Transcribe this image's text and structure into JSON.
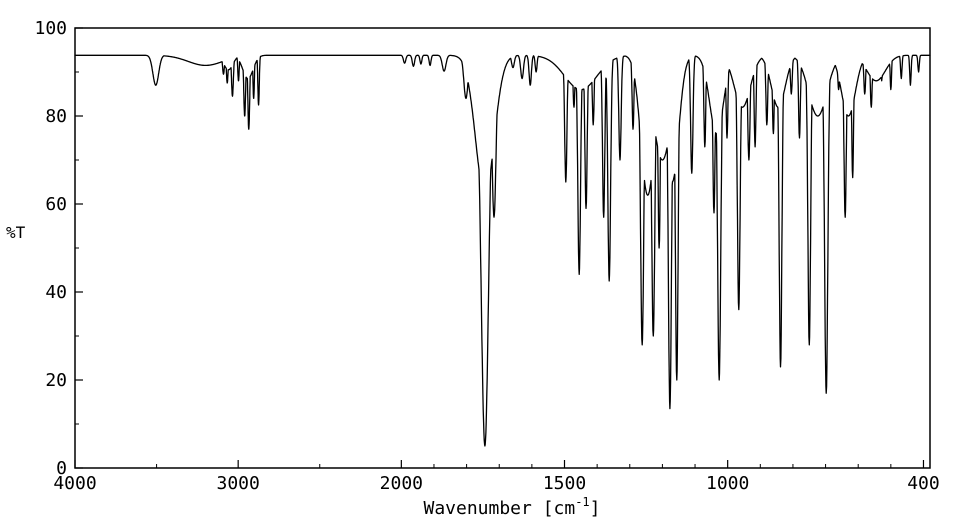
{
  "chart_data": {
    "type": "line",
    "title": "",
    "ylabel": "%T",
    "xlabel": "Wavenumber [cm⁻¹]",
    "xlabel_parts": {
      "main": "Wavenumber [cm",
      "sup": "-1",
      "close": "]"
    },
    "line_color": "#000000",
    "background": "#ffffff",
    "legend": "none",
    "grid": false,
    "x_axis": {
      "max": 4000,
      "min": 380,
      "reversed": true,
      "split": 2000,
      "compress_factor_above_split": 0.5,
      "ticks_labeled": [
        [
          4000,
          "4000"
        ],
        [
          3000,
          "3000"
        ],
        [
          2000,
          "2000"
        ],
        [
          1500,
          "1500"
        ],
        [
          1000,
          "1000"
        ],
        [
          400,
          "400"
        ]
      ],
      "ticks_minor": [
        3500,
        2500,
        1900,
        1800,
        1700,
        1600,
        1400,
        1300,
        1200,
        1100,
        900,
        800,
        700,
        600,
        500
      ]
    },
    "y_axis": {
      "min": 0,
      "max": 100,
      "ticks_labeled": [
        [
          0,
          "0"
        ],
        [
          20,
          "20"
        ],
        [
          40,
          "40"
        ],
        [
          60,
          "60"
        ],
        [
          80,
          "80"
        ],
        [
          100,
          "100"
        ]
      ],
      "ticks_minor": [
        10,
        30,
        50,
        70,
        90
      ]
    },
    "baseline_percent_t": 93.8,
    "peak_fields": [
      "center_wavenumber_cm-1",
      "min_percent_transmittance",
      "width_sigma_cm-1"
    ],
    "peaks": [
      [
        3505,
        87,
        25
      ],
      [
        3200,
        91.5,
        150
      ],
      [
        3090,
        89.5,
        8
      ],
      [
        3067,
        87.5,
        7
      ],
      [
        3060,
        90.5,
        40
      ],
      [
        3035,
        84.5,
        8
      ],
      [
        2998,
        88,
        6
      ],
      [
        2960,
        80,
        8
      ],
      [
        2940,
        88.5,
        45
      ],
      [
        2935,
        77,
        8
      ],
      [
        2905,
        84,
        6
      ],
      [
        2875,
        82.5,
        6
      ],
      [
        1990,
        92,
        5
      ],
      [
        1963,
        91.3,
        5
      ],
      [
        1940,
        91.8,
        4
      ],
      [
        1912,
        91.5,
        4
      ],
      [
        1869,
        90.2,
        8
      ],
      [
        1802,
        84,
        9
      ],
      [
        1744,
        5,
        16
      ],
      [
        1744,
        62,
        40
      ],
      [
        1716,
        57,
        9
      ],
      [
        1658,
        91,
        6
      ],
      [
        1630,
        88.5,
        6
      ],
      [
        1605,
        87,
        5
      ],
      [
        1587,
        90,
        4
      ],
      [
        1496,
        65,
        5
      ],
      [
        1471,
        82,
        4
      ],
      [
        1455,
        44,
        6
      ],
      [
        1450,
        86,
        70
      ],
      [
        1434,
        59,
        5
      ],
      [
        1412,
        78,
        4
      ],
      [
        1380,
        57,
        5
      ],
      [
        1363,
        42.5,
        6
      ],
      [
        1330,
        70,
        5
      ],
      [
        1290,
        77,
        4
      ],
      [
        1262,
        28,
        7
      ],
      [
        1245,
        62,
        30
      ],
      [
        1228,
        30,
        7
      ],
      [
        1210,
        50,
        5
      ],
      [
        1200,
        70,
        40
      ],
      [
        1177,
        13.5,
        7
      ],
      [
        1170,
        65,
        28
      ],
      [
        1156,
        20,
        6
      ],
      [
        1110,
        67,
        5
      ],
      [
        1070,
        73,
        4
      ],
      [
        1042,
        58,
        5
      ],
      [
        1034,
        76,
        30
      ],
      [
        1026,
        20,
        7
      ],
      [
        1002,
        75,
        4
      ],
      [
        966,
        36,
        6
      ],
      [
        955,
        82,
        35
      ],
      [
        935,
        70,
        5
      ],
      [
        916,
        73,
        4
      ],
      [
        880,
        78,
        4
      ],
      [
        860,
        76,
        4
      ],
      [
        845,
        82,
        30
      ],
      [
        838,
        23,
        6
      ],
      [
        805,
        85,
        4
      ],
      [
        780,
        75,
        4
      ],
      [
        750,
        28,
        6
      ],
      [
        724,
        80,
        40
      ],
      [
        698,
        17,
        7
      ],
      [
        660,
        86,
        4
      ],
      [
        640,
        57,
        5
      ],
      [
        630,
        80,
        30
      ],
      [
        617,
        66,
        4
      ],
      [
        580,
        85,
        4
      ],
      [
        560,
        82,
        4
      ],
      [
        545,
        88,
        40
      ],
      [
        528,
        88,
        3
      ],
      [
        500,
        86,
        3
      ],
      [
        468,
        88.5,
        3
      ],
      [
        440,
        87,
        3
      ],
      [
        415,
        90,
        3
      ]
    ]
  }
}
